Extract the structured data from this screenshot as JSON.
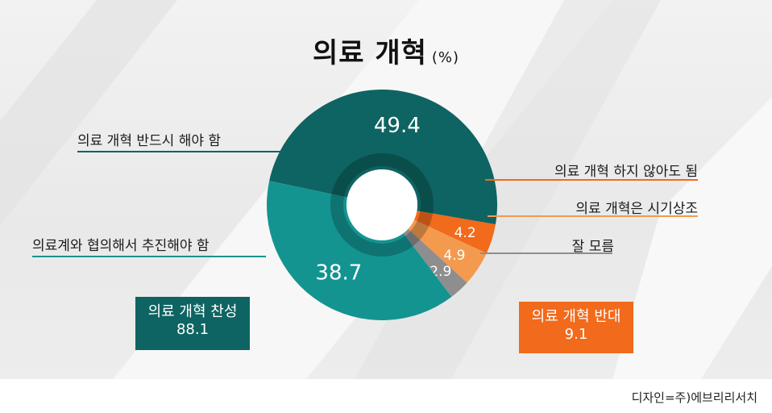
{
  "title": "의료 개혁",
  "unit": "(%)",
  "credit": "디자인=주)에브리리서치",
  "chart_data": {
    "type": "pie",
    "title": "의료 개혁 (%)",
    "slices": [
      {
        "label": "의료 개혁 반드시 해야 함",
        "value": 49.4,
        "color": "#0e6462"
      },
      {
        "label": "의료 개혁 하지 않아도 됨",
        "value": 4.2,
        "color": "#f26a1b"
      },
      {
        "label": "의료 개혁은 시기상조",
        "value": 4.9,
        "color": "#f39a4f"
      },
      {
        "label": "잘 모름",
        "value": 2.9,
        "color": "#8e8e8e"
      },
      {
        "label": "의료계와 협의해서 추진해야 함",
        "value": 38.7,
        "color": "#139491"
      }
    ],
    "groups": [
      {
        "label": "의료 개혁 찬성",
        "value": "88.1",
        "color": "#0e6462"
      },
      {
        "label": "의료 개혁 반대",
        "value": "9.1",
        "color": "#f26a1b"
      }
    ]
  }
}
